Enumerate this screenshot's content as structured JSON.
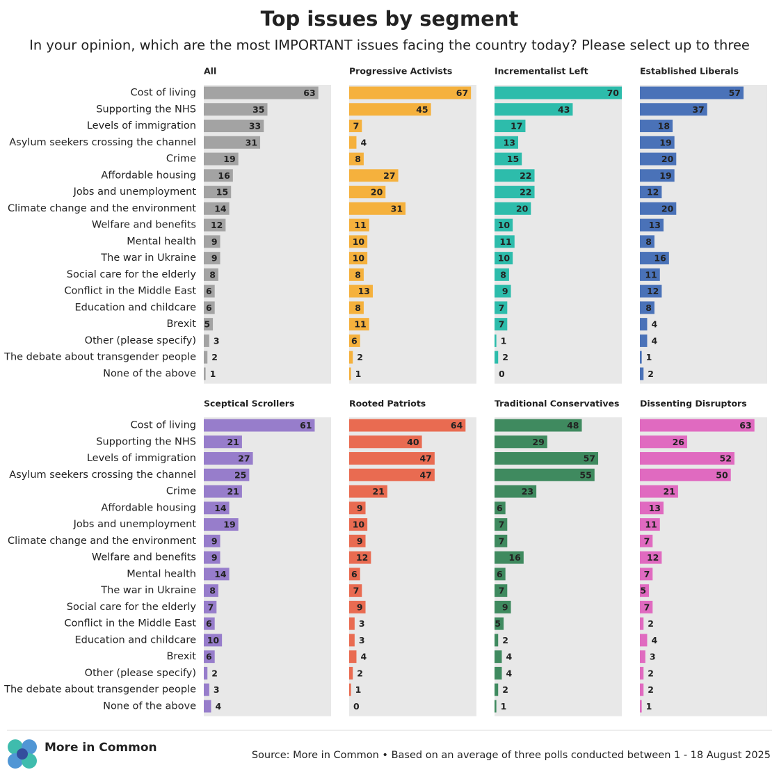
{
  "title": "Top issues by segment",
  "subtitle": "In your opinion, which are the most IMPORTANT issues facing the country today? Please select up to three",
  "source": "Source: More in Common • Based on an average of three polls conducted between 1 - 18 August 2025",
  "logo": "More in Common",
  "chart_data": [
    {
      "type": "bar",
      "orientation": "horizontal",
      "title": "All",
      "color": "#a3a3a3",
      "label_color": "#ffffff",
      "xlim": [
        0,
        70
      ],
      "categories": [
        "Cost of living",
        "Supporting the NHS",
        "Levels of immigration",
        "Asylum seekers crossing the channel",
        "Crime",
        "Affordable housing",
        "Jobs and unemployment",
        "Climate change and the environment",
        "Welfare and benefits",
        "Mental health",
        "The war in Ukraine",
        "Social care for the elderly",
        "Conflict in the Middle East",
        "Education and childcare",
        "Brexit",
        "Other (please specify)",
        "The debate about transgender people",
        "None of the above"
      ],
      "values": [
        63,
        35,
        33,
        31,
        19,
        16,
        15,
        14,
        12,
        9,
        9,
        8,
        6,
        6,
        5,
        3,
        2,
        1
      ]
    },
    {
      "type": "bar",
      "orientation": "horizontal",
      "title": "Progressive Activists",
      "color": "#f5b13d",
      "label_color": "#1f1f1f",
      "xlim": [
        0,
        70
      ],
      "values": [
        67,
        45,
        7,
        4,
        8,
        27,
        20,
        31,
        11,
        10,
        10,
        8,
        13,
        8,
        11,
        6,
        2,
        1
      ]
    },
    {
      "type": "bar",
      "orientation": "horizontal",
      "title": "Incrementalist Left",
      "color": "#2dbcab",
      "label_color": "#ffffff",
      "xlim": [
        0,
        70
      ],
      "values": [
        70,
        43,
        17,
        13,
        15,
        22,
        22,
        20,
        10,
        11,
        10,
        8,
        9,
        7,
        7,
        1,
        2,
        0
      ]
    },
    {
      "type": "bar",
      "orientation": "horizontal",
      "title": "Established Liberals",
      "color": "#4a72b8",
      "label_color": "#ffffff",
      "xlim": [
        0,
        70
      ],
      "values": [
        57,
        37,
        18,
        19,
        20,
        19,
        12,
        20,
        13,
        8,
        16,
        11,
        12,
        8,
        4,
        4,
        1,
        2
      ]
    },
    {
      "type": "bar",
      "orientation": "horizontal",
      "title": "Sceptical Scrollers",
      "color": "#977dcb",
      "label_color": "#ffffff",
      "xlim": [
        0,
        70
      ],
      "categories": [
        "Cost of living",
        "Supporting the NHS",
        "Levels of immigration",
        "Asylum seekers crossing the channel",
        "Crime",
        "Affordable housing",
        "Jobs and unemployment",
        "Climate change and the environment",
        "Welfare and benefits",
        "Mental health",
        "The war in Ukraine",
        "Social care for the elderly",
        "Conflict in the Middle East",
        "Education and childcare",
        "Brexit",
        "Other (please specify)",
        "The debate about transgender people",
        "None of the above"
      ],
      "values": [
        61,
        21,
        27,
        25,
        21,
        14,
        19,
        9,
        9,
        14,
        8,
        7,
        6,
        10,
        6,
        2,
        3,
        4
      ]
    },
    {
      "type": "bar",
      "orientation": "horizontal",
      "title": "Rooted Patriots",
      "color": "#e96b51",
      "label_color": "#ffffff",
      "xlim": [
        0,
        70
      ],
      "values": [
        64,
        40,
        47,
        47,
        21,
        9,
        10,
        9,
        12,
        6,
        7,
        9,
        3,
        3,
        4,
        2,
        1,
        0
      ]
    },
    {
      "type": "bar",
      "orientation": "horizontal",
      "title": "Traditional Conservatives",
      "color": "#3f8a5f",
      "label_color": "#ffffff",
      "xlim": [
        0,
        70
      ],
      "values": [
        48,
        29,
        57,
        55,
        23,
        6,
        7,
        7,
        16,
        6,
        7,
        9,
        5,
        2,
        4,
        4,
        2,
        1
      ]
    },
    {
      "type": "bar",
      "orientation": "horizontal",
      "title": "Dissenting Disruptors",
      "color": "#e06ac0",
      "label_color": "#ffffff",
      "xlim": [
        0,
        70
      ],
      "values": [
        63,
        26,
        52,
        50,
        21,
        13,
        11,
        7,
        12,
        7,
        5,
        7,
        2,
        4,
        3,
        2,
        2,
        1
      ]
    }
  ]
}
